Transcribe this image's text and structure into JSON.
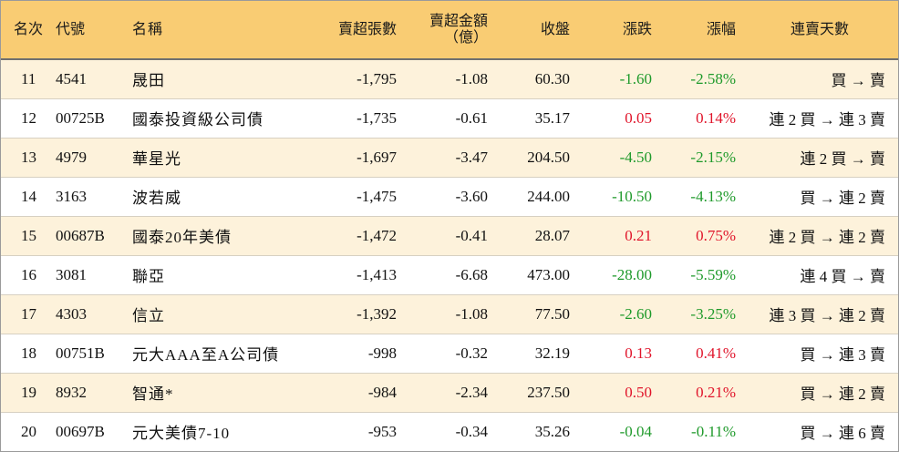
{
  "header": {
    "rank": "名次",
    "code": "代號",
    "name": "名稱",
    "sell_lots": "賣超張數",
    "sell_amount_line1": "賣超金額",
    "sell_amount_line2": "（億）",
    "close": "收盤",
    "change": "漲跌",
    "change_pct": "漲幅",
    "streak": "連賣天數"
  },
  "colors": {
    "header_bg": "#f9cc73",
    "stripe_bg": "#fdf2db",
    "up": "#e0142a",
    "down": "#1f9a2b"
  },
  "rows": [
    {
      "rank": "11",
      "code": "4541",
      "name": "晟田",
      "lots": "-1,795",
      "amount": "-1.08",
      "close": "60.30",
      "change": "-1.60",
      "pct": "-2.58%",
      "dir": "down",
      "streak": "買 → 賣"
    },
    {
      "rank": "12",
      "code": "00725B",
      "name": "國泰投資級公司債",
      "lots": "-1,735",
      "amount": "-0.61",
      "close": "35.17",
      "change": "0.05",
      "pct": "0.14%",
      "dir": "up",
      "streak": "連 2 買 → 連 3 賣"
    },
    {
      "rank": "13",
      "code": "4979",
      "name": "華星光",
      "lots": "-1,697",
      "amount": "-3.47",
      "close": "204.50",
      "change": "-4.50",
      "pct": "-2.15%",
      "dir": "down",
      "streak": "連 2 買 → 賣"
    },
    {
      "rank": "14",
      "code": "3163",
      "name": "波若威",
      "lots": "-1,475",
      "amount": "-3.60",
      "close": "244.00",
      "change": "-10.50",
      "pct": "-4.13%",
      "dir": "down",
      "streak": "買 → 連 2 賣"
    },
    {
      "rank": "15",
      "code": "00687B",
      "name": "國泰20年美債",
      "lots": "-1,472",
      "amount": "-0.41",
      "close": "28.07",
      "change": "0.21",
      "pct": "0.75%",
      "dir": "up",
      "streak": "連 2 買 → 連 2 賣"
    },
    {
      "rank": "16",
      "code": "3081",
      "name": "聯亞",
      "lots": "-1,413",
      "amount": "-6.68",
      "close": "473.00",
      "change": "-28.00",
      "pct": "-5.59%",
      "dir": "down",
      "streak": "連 4 買 → 賣"
    },
    {
      "rank": "17",
      "code": "4303",
      "name": "信立",
      "lots": "-1,392",
      "amount": "-1.08",
      "close": "77.50",
      "change": "-2.60",
      "pct": "-3.25%",
      "dir": "down",
      "streak": "連 3 買 → 連 2 賣"
    },
    {
      "rank": "18",
      "code": "00751B",
      "name": "元大AAA至A公司債",
      "lots": "-998",
      "amount": "-0.32",
      "close": "32.19",
      "change": "0.13",
      "pct": "0.41%",
      "dir": "up",
      "streak": "買 → 連 3 賣"
    },
    {
      "rank": "19",
      "code": "8932",
      "name": "智通*",
      "lots": "-984",
      "amount": "-2.34",
      "close": "237.50",
      "change": "0.50",
      "pct": "0.21%",
      "dir": "up",
      "streak": "買 → 連 2 賣"
    },
    {
      "rank": "20",
      "code": "00697B",
      "name": "元大美債7-10",
      "lots": "-953",
      "amount": "-0.34",
      "close": "35.26",
      "change": "-0.04",
      "pct": "-0.11%",
      "dir": "down",
      "streak": "買 → 連 6 賣"
    }
  ]
}
